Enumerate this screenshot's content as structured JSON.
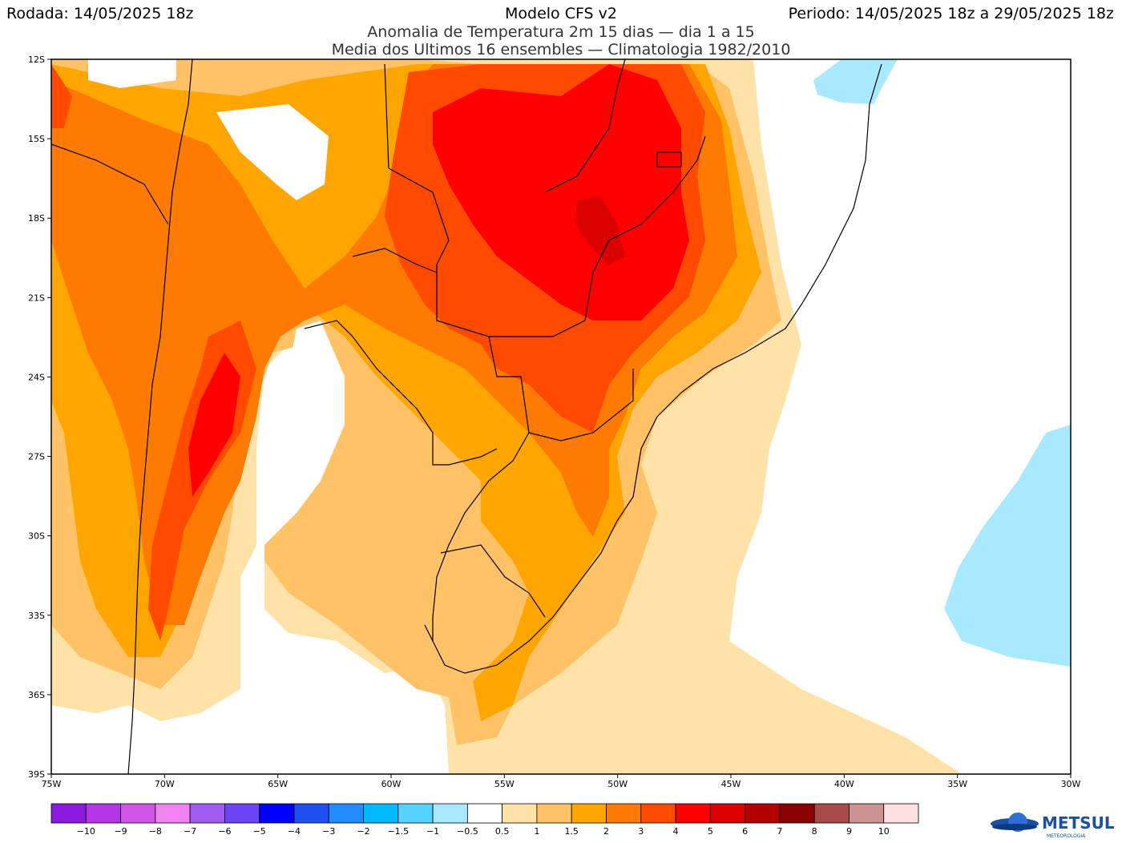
{
  "header": {
    "rodada": "Rodada: 14/05/2025 18z",
    "model": "Modelo CFS v2",
    "periodo": "Periodo: 14/05/2025 18z a 29/05/2025 18z",
    "subtitle1": "Anomalia de Temperatura 2m 15 dias — dia 1 a 15",
    "subtitle2": "Media dos Ultimos 16 ensembles — Climatologia 1982/2010"
  },
  "axes": {
    "lat_labels": [
      "12S",
      "15S",
      "18S",
      "21S",
      "24S",
      "27S",
      "30S",
      "33S",
      "36S",
      "39S"
    ],
    "lon_labels": [
      "75W",
      "70W",
      "65W",
      "60W",
      "55W",
      "50W",
      "45W",
      "40W",
      "35W",
      "30W"
    ]
  },
  "colorbar": {
    "colors": [
      "#8c1ade",
      "#b335e3",
      "#cf55e6",
      "#ee82ee",
      "#a05cf0",
      "#6b45f5",
      "#0000ff",
      "#1f4ff0",
      "#1f8bff",
      "#00b8ff",
      "#55d3ff",
      "#a8e9ff",
      "#ffffff",
      "#ffe2a8",
      "#ffc266",
      "#ffa500",
      "#ff7a00",
      "#ff4a00",
      "#ff0000",
      "#d90000",
      "#b50000",
      "#8b0000",
      "#a64a4a",
      "#cc9393",
      "#ffe0e0"
    ],
    "labels": [
      "−10",
      "−9",
      "−8",
      "−7",
      "−6",
      "−5",
      "−4",
      "−3",
      "−2",
      "−1.5",
      "−1",
      "−0.5",
      "0.5",
      "1",
      "1.5",
      "2",
      "3",
      "4",
      "5",
      "6",
      "7",
      "8",
      "9",
      "10"
    ]
  },
  "map_colors": {
    "light": "#ffe2a8",
    "pale_orange": "#ffc266",
    "orange": "#ffa500",
    "dark_orange": "#ff7a00",
    "red_orange": "#ff4a00",
    "red": "#ff0000",
    "dark_red": "#d90000",
    "cold": "#a8e9ff"
  },
  "logo": {
    "text": "METSUL",
    "subtext": "METEOROLOGIA"
  }
}
